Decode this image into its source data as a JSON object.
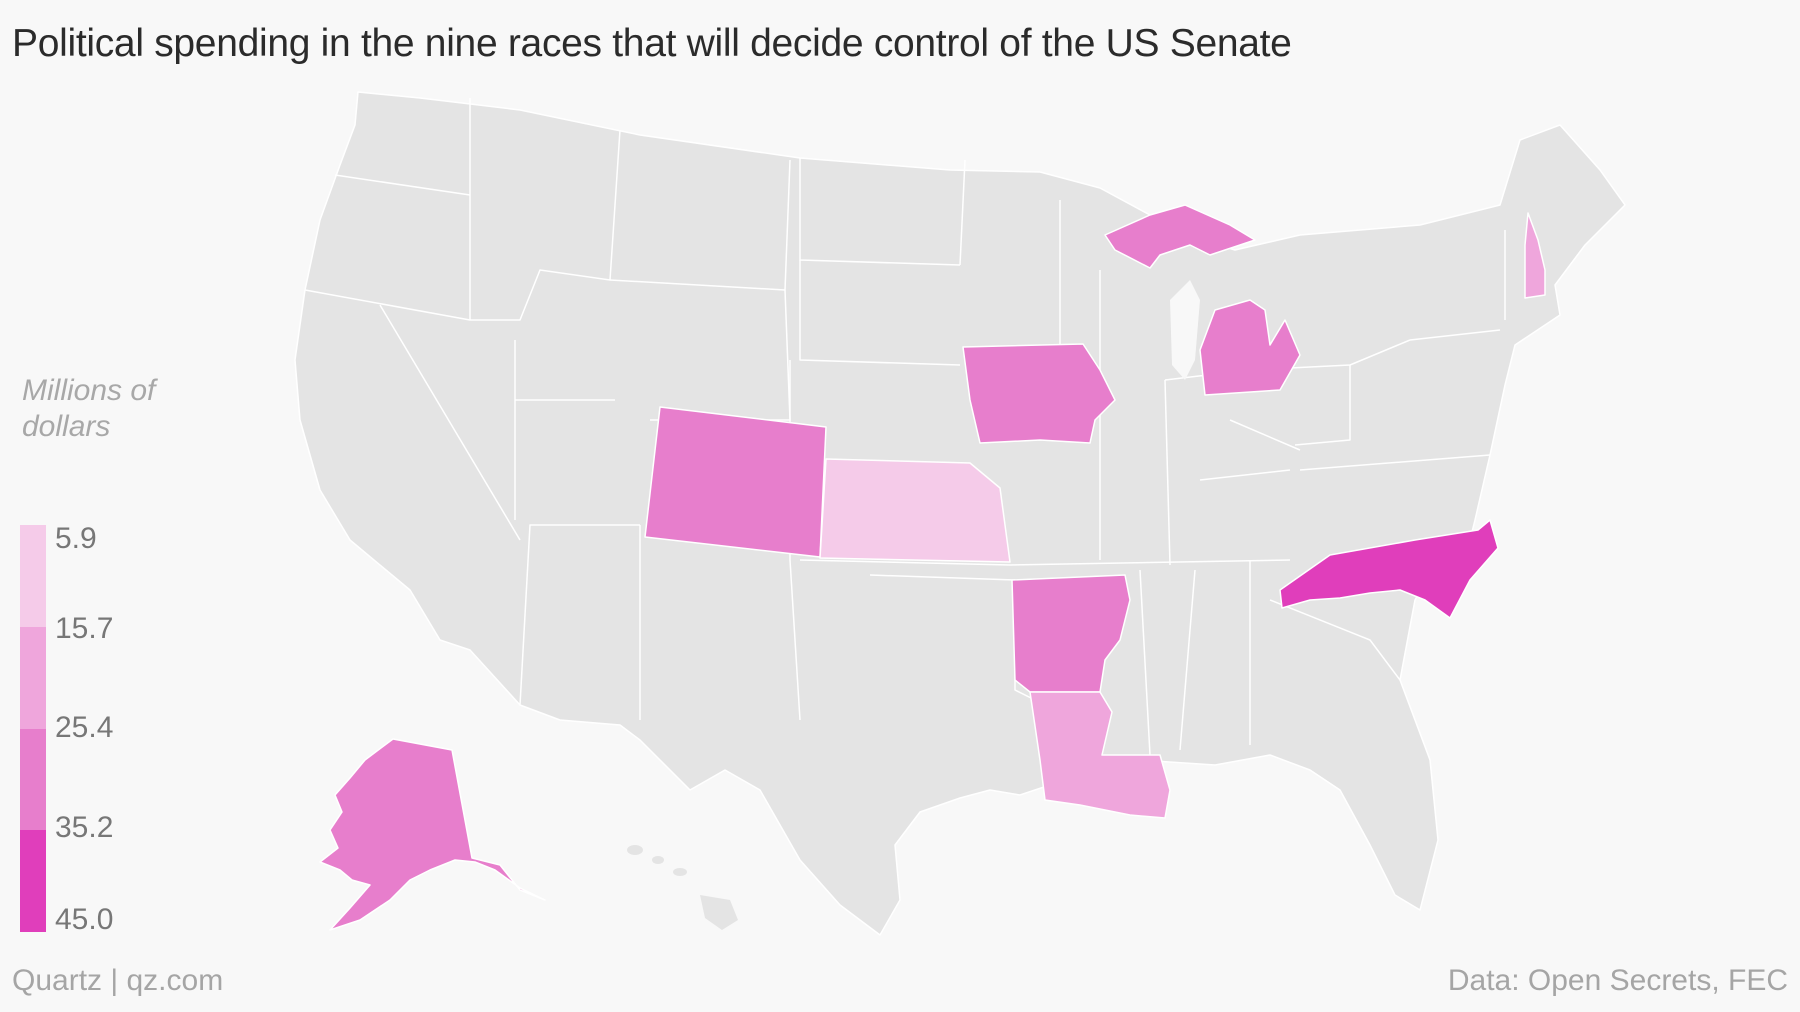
{
  "title": "Political spending in the nine races that will decide control of the US Senate",
  "legend": {
    "title_line1": "Millions of",
    "title_line2": "dollars",
    "ticks": [
      "5.9",
      "15.7",
      "25.4",
      "35.2",
      "45.0"
    ],
    "bins": [
      {
        "range": "5.9–15.7",
        "color": "#f5cbe9"
      },
      {
        "range": "15.7–25.4",
        "color": "#efa6dc"
      },
      {
        "range": "25.4–35.2",
        "color": "#e77ecc"
      },
      {
        "range": "35.2–45.0",
        "color": "#e03ebb"
      }
    ]
  },
  "colors": {
    "background": "#f8f8f8",
    "state_default": "#e4e4e4",
    "state_border": "#ffffff"
  },
  "highlighted_states": [
    {
      "state": "Kansas",
      "bin": 0
    },
    {
      "state": "New Hampshire",
      "bin": 1
    },
    {
      "state": "Louisiana",
      "bin": 1
    },
    {
      "state": "Colorado",
      "bin": 2
    },
    {
      "state": "Iowa",
      "bin": 2
    },
    {
      "state": "Michigan",
      "bin": 2
    },
    {
      "state": "Arkansas",
      "bin": 2
    },
    {
      "state": "Alaska",
      "bin": 2
    },
    {
      "state": "North Carolina",
      "bin": 3
    }
  ],
  "footer": {
    "source_left": "Quartz | qz.com",
    "source_right": "Data: Open Secrets, FEC"
  }
}
